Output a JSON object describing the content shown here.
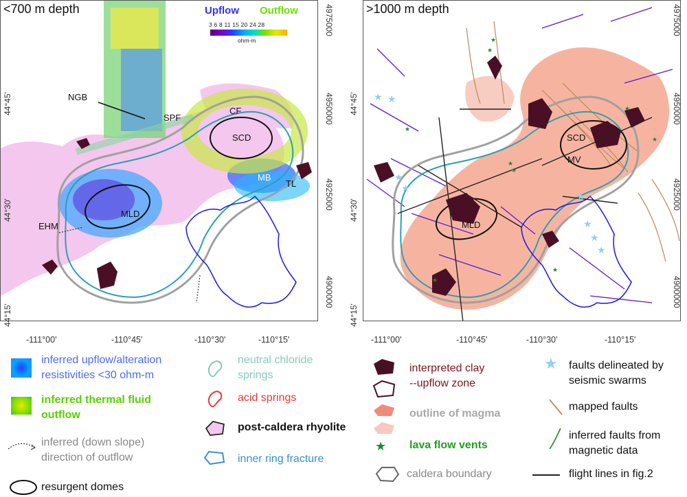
{
  "left_panel": {
    "title": "<700 m depth",
    "colorbar": {
      "upflow_label": "Upflow",
      "outflow_label": "Outflow",
      "tick_values": "3 6 8 11 15 20 24 28",
      "unit": "ohm-m"
    },
    "labels": {
      "ngb": "NGB",
      "spf": "SPF",
      "cf": "CF",
      "scd": "SCD",
      "mb": "MB",
      "tl": "TL",
      "mld": "MLD",
      "ehm": "EHM"
    }
  },
  "right_panel": {
    "title": ">1000 m depth",
    "labels": {
      "scd": "SCD",
      "mv": "MV",
      "mld": "MLD"
    }
  },
  "axes": {
    "lat_ticks": [
      "44°45'",
      "44°30'",
      "44°15'"
    ],
    "northing_ticks": [
      "4975000",
      "4950000",
      "4925000",
      "4900000"
    ],
    "lon_ticks": [
      "-111°00'",
      "-110°45'",
      "-110°30'",
      "-110°15'"
    ]
  },
  "legend": {
    "upflow_line1": "inferred upflow/alteration",
    "upflow_line2": "resistivities <30 ohm-m",
    "outflow_line1": "inferred thermal fluid",
    "outflow_line2": "outflow",
    "direction_line1": "inferred (down slope)",
    "direction_line2": "direction of outflow",
    "domes": "resurgent domes",
    "chloride_line1": "neutral chloride",
    "chloride_line2": "springs",
    "acid": "acid springs",
    "rhyolite": "post-caldera rhyolite",
    "ring": "inner ring fracture",
    "clay_line1": "interpreted clay",
    "clay_line2": "--upflow zone",
    "magma": "outline of magma",
    "vents": "lava flow vents",
    "caldera": "caldera boundary",
    "seismic_line1": "faults delineated by",
    "seismic_line2": "seismic swarms",
    "mapped_faults": "mapped faults",
    "magnetic_line1": "inferred faults from",
    "magnetic_line2": "magnetic data",
    "flight_lines": "flight lines in fig.2"
  },
  "colors": {
    "rhyolite_fill": "#f4c7ee",
    "magma_fill": "#f4a78f",
    "clay_fill": "#4a0f24",
    "caldera_line": "#a0a0a0",
    "ring_fracture": "#2aa0b0",
    "lake_outline": "#1a14e0",
    "magnetic_faults": "#5a18d8",
    "mapped_faults": "#b88a5a",
    "seismic_star": "#8fd0f0",
    "vent_star": "#1a8a3a",
    "upflow_text": "#4a6cf0",
    "outflow_text": "#58d000",
    "direction_text": "#888888",
    "chloride_text": "#88c8b8",
    "acid_text": "#e8383a",
    "clay_text": "#7a1420",
    "magma_text": "#a8a8a8",
    "vents_text": "#1fa01f",
    "ring_text": "#3a90c8",
    "caldera_text": "#888888"
  }
}
